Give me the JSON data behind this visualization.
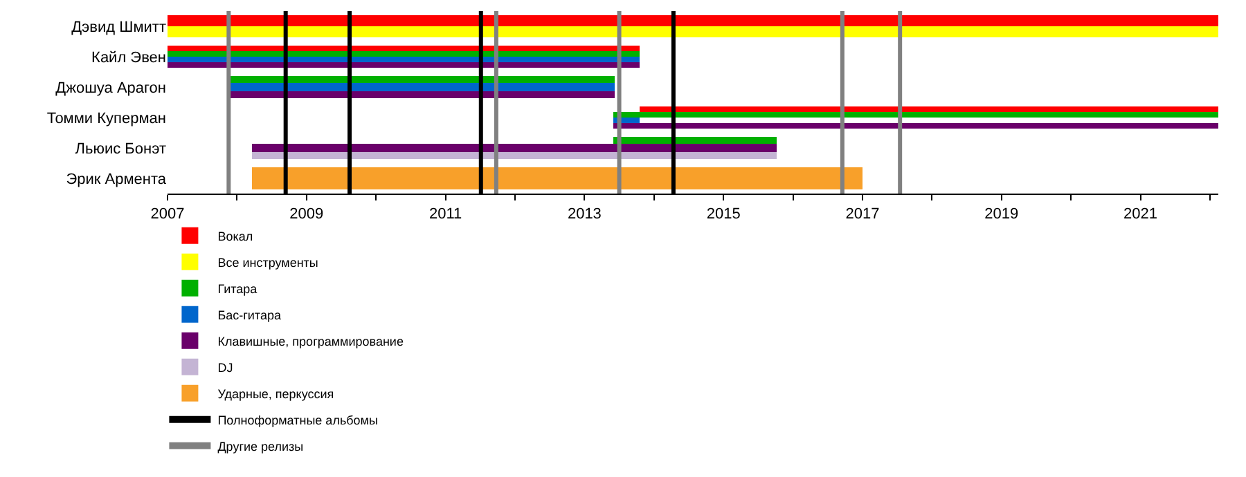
{
  "chart_data": {
    "type": "bar",
    "orientation": "horizontal",
    "categories": [
      "Дэвид Шмитт",
      "Кайл Эвен",
      "Джошуа Арагон",
      "Томми Куперман",
      "Льюис Бонэт",
      "Эрик Армента"
    ],
    "series": [
      {
        "name": "Вокал",
        "color": "#ff0000",
        "base": [
          2007,
          2007,
          null,
          2013.79,
          null,
          null
        ],
        "values": [
          15.12,
          6.79,
          null,
          8.33,
          null,
          null
        ]
      },
      {
        "name": "Все инструменты",
        "color": "#ffff00",
        "base": [
          2007,
          null,
          null,
          null,
          null,
          null
        ],
        "values": [
          15.12,
          null,
          null,
          null,
          null,
          null
        ]
      },
      {
        "name": "Гитара",
        "color": "#00b000",
        "base": [
          null,
          2007,
          2007.88,
          2013.41,
          2013.41,
          null
        ],
        "values": [
          null,
          6.79,
          5.55,
          8.71,
          2.35,
          null
        ]
      },
      {
        "name": "Бас-гитара",
        "color": "#0066cc",
        "base": [
          null,
          2007,
          2007.88,
          2013.41,
          null,
          null
        ],
        "values": [
          null,
          6.79,
          5.55,
          0.38,
          null,
          null
        ]
      },
      {
        "name": "Клавишные, программирование",
        "color": "#6a006a",
        "base": [
          null,
          2007,
          2007.88,
          2013.41,
          2008.22,
          null
        ],
        "values": [
          null,
          6.79,
          5.55,
          8.71,
          7.54,
          null
        ]
      },
      {
        "name": "DJ",
        "color": "#c4b4d4",
        "base": [
          null,
          null,
          null,
          null,
          2008.22,
          null
        ],
        "values": [
          null,
          null,
          null,
          null,
          7.54,
          null
        ]
      },
      {
        "name": "Ударные, перкуссия",
        "color": "#f8a02a",
        "base": [
          null,
          null,
          null,
          null,
          null,
          2008.22
        ],
        "values": [
          null,
          null,
          null,
          null,
          null,
          8.79
        ]
      }
    ],
    "ref_lines": [
      {
        "axis": "x",
        "value": 2008.7,
        "label": "Полноформатные альбомы",
        "color": "#000000"
      },
      {
        "axis": "x",
        "value": 2009.62,
        "color": "#000000"
      },
      {
        "axis": "x",
        "value": 2011.51,
        "color": "#000000"
      },
      {
        "axis": "x",
        "value": 2014.28,
        "color": "#000000"
      },
      {
        "axis": "x",
        "value": 2007.88,
        "label": "Другие релизы",
        "color": "#808080"
      },
      {
        "axis": "x",
        "value": 2011.73,
        "color": "#808080"
      },
      {
        "axis": "x",
        "value": 2013.5,
        "color": "#808080"
      },
      {
        "axis": "x",
        "value": 2016.71,
        "color": "#808080"
      },
      {
        "axis": "x",
        "value": 2017.54,
        "color": "#808080"
      }
    ],
    "xlim": [
      2007,
      2022.12
    ],
    "xticks": [
      2007,
      {
        "value": 2008,
        "label": null
      },
      2009,
      {
        "value": 2010,
        "label": null
      },
      2011,
      {
        "value": 2012,
        "label": null
      },
      2013,
      {
        "value": 2014,
        "label": null
      },
      2015,
      {
        "value": 2016,
        "label": null
      },
      2017,
      {
        "value": 2018,
        "label": null
      },
      2019,
      {
        "value": 2020,
        "label": null
      },
      2021,
      {
        "value": 2022,
        "label": null
      }
    ],
    "legend": "bottom left"
  }
}
